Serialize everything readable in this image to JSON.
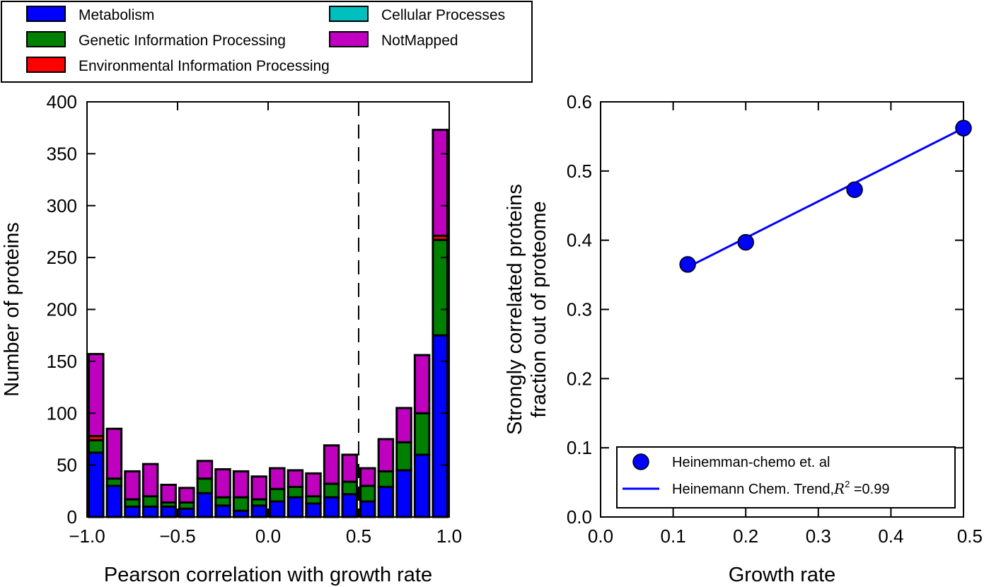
{
  "legend_top": {
    "entries": [
      {
        "label": "Metabolism",
        "color": "#0000ff"
      },
      {
        "label": "Genetic Information Processing",
        "color": "#008000"
      },
      {
        "label": "Environmental Information Processing",
        "color": "#ff0000"
      },
      {
        "label": "Cellular Processes",
        "color": "#00bfbf"
      },
      {
        "label": "NotMapped",
        "color": "#bf00bf"
      }
    ]
  },
  "chart_data": [
    {
      "type": "bar",
      "stacked": true,
      "xlabel": "Pearson correlation with growth rate",
      "ylabel": "Number of proteins",
      "xlim": [
        -1.0,
        1.0
      ],
      "ylim": [
        0,
        400
      ],
      "xticks": [
        "−1.0",
        "−0.5",
        "0.0",
        "0.5",
        "1.0"
      ],
      "yticks": [
        "0",
        "50",
        "100",
        "150",
        "200",
        "250",
        "300",
        "350",
        "400"
      ],
      "dashed_vline_x": 0.5,
      "bin_width": 0.1,
      "bins": [
        -0.95,
        -0.85,
        -0.75,
        -0.65,
        -0.55,
        -0.45,
        -0.35,
        -0.25,
        -0.15,
        -0.05,
        0.05,
        0.15,
        0.25,
        0.35,
        0.45,
        0.55,
        0.65,
        0.75,
        0.85,
        0.95
      ],
      "series": [
        {
          "name": "Metabolism",
          "color": "#0000ff",
          "values": [
            62,
            30,
            10,
            10,
            10,
            8,
            23,
            11,
            6,
            11,
            15,
            19,
            13,
            19,
            22,
            15,
            29,
            45,
            60,
            175
          ]
        },
        {
          "name": "Genetic Information Processing",
          "color": "#008000",
          "values": [
            12,
            7,
            7,
            10,
            4,
            6,
            14,
            8,
            13,
            6,
            12,
            10,
            7,
            13,
            12,
            15,
            15,
            27,
            40,
            92
          ]
        },
        {
          "name": "Environmental Information Processing",
          "color": "#ff0000",
          "values": [
            4,
            0,
            0,
            0,
            0,
            0,
            0,
            0,
            0,
            0,
            0,
            0,
            0,
            0,
            0,
            0,
            0,
            0,
            0,
            4
          ]
        },
        {
          "name": "Cellular Processes",
          "color": "#00bfbf",
          "values": [
            0,
            0,
            0,
            0,
            0,
            0,
            0,
            0,
            0,
            0,
            0,
            0,
            0,
            0,
            0,
            0,
            0,
            0,
            0,
            0
          ]
        },
        {
          "name": "NotMapped",
          "color": "#bf00bf",
          "values": [
            79,
            48,
            27,
            31,
            17,
            14,
            17,
            27,
            25,
            22,
            20,
            16,
            22,
            37,
            26,
            17,
            31,
            33,
            56,
            102
          ]
        }
      ]
    },
    {
      "type": "scatter",
      "xlabel": "Growth rate",
      "ylabel_lines": [
        "Strongly correlated proteins",
        "fraction out of proteome"
      ],
      "xlim": [
        0.0,
        0.5
      ],
      "ylim": [
        0.0,
        0.6
      ],
      "xticks": [
        "0.0",
        "0.1",
        "0.2",
        "0.3",
        "0.4",
        "0.5"
      ],
      "yticks": [
        "0.0",
        "0.1",
        "0.2",
        "0.3",
        "0.4",
        "0.5",
        "0.6"
      ],
      "points": {
        "name": "Heinemman-chemo et. al",
        "color": "#0000ff",
        "x": [
          0.12,
          0.2,
          0.35,
          0.5
        ],
        "y": [
          0.365,
          0.397,
          0.473,
          0.562
        ]
      },
      "trend": {
        "name_prefix": "Heinemann Chem. Trend,",
        "r2_symbol": "R",
        "r2_exp": "2",
        "r2_value": " =0.99",
        "color": "#0000ff",
        "x": [
          0.12,
          0.5
        ],
        "y": [
          0.361,
          0.562
        ]
      },
      "legend_location": "lower-right"
    }
  ]
}
